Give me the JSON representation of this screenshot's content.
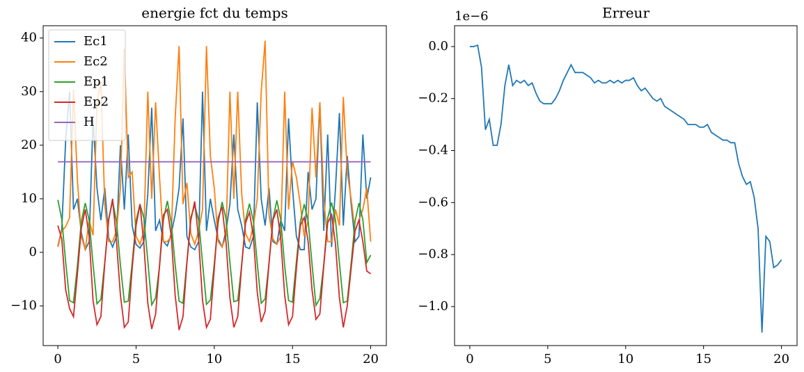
{
  "chart_data": [
    {
      "type": "line",
      "title": "energie fct du temps",
      "legend": "upper left",
      "x": [
        0,
        0.25,
        0.5,
        0.75,
        1,
        1.25,
        1.5,
        1.75,
        2,
        2.25,
        2.5,
        2.75,
        3,
        3.25,
        3.5,
        3.75,
        4,
        4.25,
        4.5,
        4.75,
        5,
        5.25,
        5.5,
        5.75,
        6,
        6.25,
        6.5,
        6.75,
        7,
        7.25,
        7.5,
        7.75,
        8,
        8.25,
        8.5,
        8.75,
        9,
        9.25,
        9.5,
        9.75,
        10,
        10.25,
        10.5,
        10.75,
        11,
        11.25,
        11.5,
        11.75,
        12,
        12.25,
        12.5,
        12.75,
        13,
        13.25,
        13.5,
        13.75,
        14,
        14.25,
        14.5,
        14.75,
        15,
        15.25,
        15.5,
        15.75,
        16,
        16.25,
        16.5,
        16.75,
        17,
        17.25,
        17.5,
        17.75,
        18,
        18.25,
        18.5,
        18.75,
        19,
        19.25,
        19.5,
        19.75,
        20
      ],
      "xlim": [
        -0.94,
        21.0
      ],
      "xticks": [
        0,
        5,
        10,
        15,
        20
      ],
      "ylim": [
        -17.4,
        42.3
      ],
      "yticks": [
        {
          "value": -10,
          "label": "−10"
        },
        0,
        10,
        20,
        30,
        40
      ],
      "series": [
        {
          "name": "Ec1",
          "color": "#1f77b4",
          "values": [
            1.2,
            4.3,
            21,
            30,
            8,
            10,
            3.7,
            0.5,
            2,
            25,
            12,
            6,
            12,
            2.7,
            1.0,
            3.0,
            20.0,
            8.0,
            22.0,
            5.0,
            1.5,
            0.8,
            2.0,
            11.0,
            27.0,
            4.0,
            6.0,
            2.0,
            1.2,
            3.5,
            7.0,
            12.0,
            25.0,
            3.0,
            1.0,
            0.5,
            2.0,
            30.0,
            4.0,
            10.0,
            6.0,
            2.5,
            1.0,
            4.0,
            9.0,
            22.0,
            8.0,
            5.0,
            1.0,
            0.7,
            3.0,
            28.0,
            10.0,
            5.0,
            12.0,
            2.0,
            1.5,
            6.0,
            4.0,
            25.0,
            12.0,
            3.0,
            0.5,
            0.5,
            15.0,
            8.0,
            10.0,
            28.0,
            4.0,
            22.0,
            1.0,
            12.0,
            26.0,
            5.0,
            18.0,
            9.0,
            2.0,
            3.0,
            22.0,
            10.0,
            14.0
          ]
        },
        {
          "name": "Ec2",
          "color": "#ff7f0e",
          "values": [
            1.0,
            4.0,
            4.8,
            6.5,
            30.4,
            13.5,
            3.0,
            0.5,
            6,
            3.2,
            28,
            31.8,
            8.9,
            2.0,
            2.0,
            4.0,
            12.0,
            38.0,
            14.0,
            15.0,
            3.0,
            1.5,
            4.0,
            30.0,
            10.0,
            28.0,
            14.0,
            2.0,
            2.0,
            3.0,
            25.0,
            38.5,
            9.0,
            13.0,
            3.5,
            1.5,
            4.0,
            8.0,
            38.5,
            18.0,
            12.0,
            2.0,
            1.0,
            3.0,
            30.0,
            10.0,
            30.0,
            11.0,
            3.5,
            2.0,
            5.0,
            10.0,
            30.0,
            39.5,
            7.0,
            2.5,
            1.5,
            3.0,
            30.0,
            8.0,
            17.0,
            14.0,
            9.0,
            3.0,
            6.0,
            27.0,
            14.0,
            28.0,
            10.0,
            2.0,
            2.0,
            8.0,
            5.0,
            29.0,
            15.0,
            10.0,
            4.0,
            6.0,
            8.0,
            12.0,
            2.0
          ]
        },
        {
          "name": "Ep1",
          "color": "#2ca02c",
          "values": [
            9.8,
            6.2,
            -1.8,
            -9.0,
            -9.4,
            -2.5,
            5.8,
            9.2,
            6.0,
            -2.2,
            -9.6,
            -8.8,
            -1.9,
            6.3,
            9.5,
            5.7,
            -2.4,
            -9.3,
            -9.1,
            -2.0,
            5.9,
            9.0,
            6.4,
            -1.6,
            -9.8,
            -8.5,
            -2.6,
            6.1,
            9.6,
            5.5,
            -2.3,
            -9.1,
            -9.5,
            -1.8,
            6.5,
            8.8,
            6.0,
            -2.0,
            -9.7,
            -8.9,
            -2.2,
            5.6,
            9.4,
            6.3,
            -1.9,
            -9.2,
            -9.0,
            -2.4,
            6.0,
            9.1,
            5.8,
            -2.1,
            -9.5,
            -8.7,
            -2.0,
            6.2,
            9.7,
            6.1,
            -2.5,
            -9.0,
            -9.3,
            -1.7,
            5.7,
            9.0,
            5.9,
            -2.2,
            -9.9,
            -8.6,
            -2.3,
            6.4,
            9.3,
            6.0,
            -2.0,
            -9.4,
            -9.1,
            -2.1,
            5.8,
            9.2,
            6.1,
            -1.9,
            -0.5
          ]
        },
        {
          "name": "Ep2",
          "color": "#d62728",
          "values": [
            5.0,
            2.5,
            -7.0,
            -10.5,
            -12.0,
            -4.0,
            4.5,
            8.0,
            3.0,
            -9.0,
            -13.5,
            -12.0,
            -2.0,
            6.0,
            10.0,
            2.0,
            -8.0,
            -14.0,
            -13.0,
            -3.0,
            5.0,
            9.0,
            1.5,
            -9.5,
            -14.3,
            -11.5,
            -2.5,
            7.0,
            8.0,
            3.0,
            -8.0,
            -14.5,
            -12.0,
            -2.0,
            6.0,
            9.5,
            2.5,
            -9.0,
            -14.0,
            -12.5,
            -3.0,
            6.5,
            8.5,
            2.0,
            -8.5,
            -14.0,
            -12.0,
            -2.5,
            5.5,
            7.5,
            3.0,
            -7.5,
            -13.0,
            -11.0,
            -2.0,
            6.0,
            8.0,
            2.5,
            -8.0,
            -13.5,
            -12.0,
            -3.0,
            5.0,
            6.5,
            2.0,
            -7.0,
            -12.5,
            -11.5,
            -2.5,
            5.5,
            7.0,
            1.5,
            -8.5,
            -14.0,
            -10.0,
            -3.0,
            4.0,
            6.0,
            2.0,
            -3.5,
            -4.0
          ]
        },
        {
          "name": "H",
          "color": "#9467bd",
          "values": [
            16.9,
            16.9,
            16.9,
            16.9,
            16.9,
            16.9,
            16.9,
            16.9,
            16.9,
            16.9,
            16.9,
            16.9,
            16.9,
            16.9,
            16.9,
            16.9,
            16.9,
            16.9,
            16.9,
            16.9,
            16.9,
            16.9,
            16.9,
            16.9,
            16.9,
            16.9,
            16.9,
            16.9,
            16.9,
            16.9,
            16.9,
            16.9,
            16.9,
            16.9,
            16.9,
            16.9,
            16.9,
            16.9,
            16.9,
            16.9,
            16.9,
            16.9,
            16.9,
            16.9,
            16.9,
            16.9,
            16.9,
            16.9,
            16.9,
            16.9,
            16.9,
            16.9,
            16.9,
            16.9,
            16.9,
            16.9,
            16.9,
            16.9,
            16.9,
            16.9,
            16.9,
            16.9,
            16.9,
            16.9,
            16.9,
            16.9,
            16.9,
            16.9,
            16.9,
            16.9,
            16.9,
            16.9,
            16.9,
            16.9,
            16.9,
            16.9,
            16.9,
            16.9,
            16.9,
            16.9,
            16.9
          ]
        }
      ]
    },
    {
      "type": "line",
      "title": "Erreur",
      "offset_text": "1e−6",
      "x": [
        0,
        0.25,
        0.5,
        0.75,
        1,
        1.25,
        1.5,
        1.75,
        2,
        2.25,
        2.5,
        2.75,
        3,
        3.25,
        3.5,
        3.75,
        4,
        4.25,
        4.5,
        4.75,
        5,
        5.25,
        5.5,
        5.75,
        6,
        6.25,
        6.5,
        6.75,
        7,
        7.25,
        7.5,
        7.75,
        8,
        8.25,
        8.5,
        8.75,
        9,
        9.25,
        9.5,
        9.75,
        10,
        10.25,
        10.5,
        10.75,
        11,
        11.25,
        11.5,
        11.75,
        12,
        12.25,
        12.5,
        12.75,
        13,
        13.25,
        13.5,
        13.75,
        14,
        14.25,
        14.5,
        14.75,
        15,
        15.25,
        15.5,
        15.75,
        16,
        16.25,
        16.5,
        16.75,
        17,
        17.25,
        17.5,
        17.75,
        18,
        18.25,
        18.5,
        18.75,
        19,
        19.25,
        19.5,
        19.75,
        20
      ],
      "xlim": [
        -0.98,
        21.0
      ],
      "xticks": [
        0,
        5,
        10,
        15,
        20
      ],
      "ylim": [
        -1.15,
        0.08
      ],
      "yticks": [
        {
          "value": -1.0,
          "label": "−1.0"
        },
        {
          "value": -0.8,
          "label": "−0.8"
        },
        {
          "value": -0.6,
          "label": "−0.6"
        },
        {
          "value": -0.4,
          "label": "−0.4"
        },
        {
          "value": -0.2,
          "label": "−0.2"
        },
        {
          "value": 0,
          "label": "0.0"
        }
      ],
      "series": [
        {
          "color": "#1f77b4",
          "values": [
            0,
            0,
            0.005,
            -0.08,
            -0.32,
            -0.28,
            -0.38,
            -0.38,
            -0.3,
            -0.15,
            -0.07,
            -0.15,
            -0.13,
            -0.14,
            -0.13,
            -0.15,
            -0.14,
            -0.18,
            -0.21,
            -0.22,
            -0.22,
            -0.22,
            -0.2,
            -0.17,
            -0.13,
            -0.1,
            -0.07,
            -0.1,
            -0.1,
            -0.1,
            -0.11,
            -0.12,
            -0.14,
            -0.13,
            -0.14,
            -0.14,
            -0.13,
            -0.14,
            -0.13,
            -0.14,
            -0.13,
            -0.13,
            -0.12,
            -0.15,
            -0.17,
            -0.16,
            -0.18,
            -0.2,
            -0.21,
            -0.2,
            -0.23,
            -0.24,
            -0.25,
            -0.26,
            -0.27,
            -0.28,
            -0.3,
            -0.3,
            -0.3,
            -0.31,
            -0.31,
            -0.3,
            -0.33,
            -0.34,
            -0.35,
            -0.36,
            -0.36,
            -0.37,
            -0.37,
            -0.45,
            -0.5,
            -0.53,
            -0.52,
            -0.58,
            -0.7,
            -1.1,
            -0.73,
            -0.75,
            -0.85,
            -0.84,
            -0.82
          ]
        }
      ]
    }
  ]
}
